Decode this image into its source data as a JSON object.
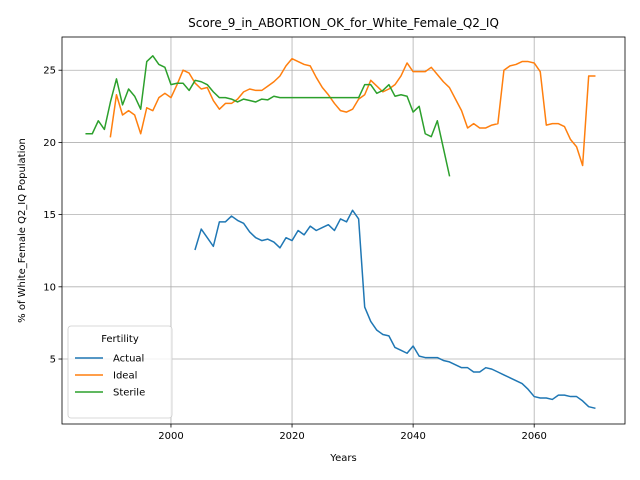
{
  "chart_data": {
    "type": "line",
    "title": "Score_9_in_ABORTION_OK_for_White_Female_Q2_IQ",
    "xlabel": "Years",
    "ylabel": "% of White_Female Q2_IQ Population",
    "xlim": [
      1982,
      2075
    ],
    "ylim": [
      0.5,
      27.3
    ],
    "x_ticks": [
      2000,
      2020,
      2040,
      2060
    ],
    "y_ticks": [
      5,
      10,
      15,
      20,
      25
    ],
    "grid": true,
    "legend": {
      "title": "Fertility",
      "position": "lower-left"
    },
    "series": [
      {
        "name": "Actual",
        "color": "#1f77b4",
        "points": [
          [
            2004,
            12.6
          ],
          [
            2005,
            14.0
          ],
          [
            2006,
            13.4
          ],
          [
            2007,
            12.8
          ],
          [
            2008,
            14.5
          ],
          [
            2009,
            14.5
          ],
          [
            2010,
            14.9
          ],
          [
            2011,
            14.6
          ],
          [
            2012,
            14.4
          ],
          [
            2013,
            13.8
          ],
          [
            2014,
            13.4
          ],
          [
            2015,
            13.2
          ],
          [
            2016,
            13.3
          ],
          [
            2017,
            13.1
          ],
          [
            2018,
            12.7
          ],
          [
            2019,
            13.4
          ],
          [
            2020,
            13.2
          ],
          [
            2021,
            13.9
          ],
          [
            2022,
            13.6
          ],
          [
            2023,
            14.2
          ],
          [
            2024,
            13.9
          ],
          [
            2025,
            14.1
          ],
          [
            2026,
            14.3
          ],
          [
            2027,
            13.9
          ],
          [
            2028,
            14.7
          ],
          [
            2029,
            14.5
          ],
          [
            2030,
            15.3
          ],
          [
            2031,
            14.7
          ],
          [
            2032,
            8.6
          ],
          [
            2033,
            7.6
          ],
          [
            2034,
            7.0
          ],
          [
            2035,
            6.7
          ],
          [
            2036,
            6.6
          ],
          [
            2037,
            5.8
          ],
          [
            2038,
            5.6
          ],
          [
            2039,
            5.4
          ],
          [
            2040,
            5.9
          ],
          [
            2041,
            5.2
          ],
          [
            2042,
            5.1
          ],
          [
            2043,
            5.1
          ],
          [
            2044,
            5.1
          ],
          [
            2045,
            4.9
          ],
          [
            2046,
            4.8
          ],
          [
            2047,
            4.6
          ],
          [
            2048,
            4.4
          ],
          [
            2049,
            4.4
          ],
          [
            2050,
            4.1
          ],
          [
            2051,
            4.1
          ],
          [
            2052,
            4.4
          ],
          [
            2053,
            4.3
          ],
          [
            2054,
            4.1
          ],
          [
            2055,
            3.9
          ],
          [
            2056,
            3.7
          ],
          [
            2057,
            3.5
          ],
          [
            2058,
            3.3
          ],
          [
            2059,
            2.9
          ],
          [
            2060,
            2.4
          ],
          [
            2061,
            2.3
          ],
          [
            2062,
            2.3
          ],
          [
            2063,
            2.2
          ],
          [
            2064,
            2.5
          ],
          [
            2065,
            2.5
          ],
          [
            2066,
            2.4
          ],
          [
            2067,
            2.4
          ],
          [
            2068,
            2.1
          ],
          [
            2069,
            1.7
          ],
          [
            2070,
            1.6
          ]
        ]
      },
      {
        "name": "Ideal",
        "color": "#ff7f0e",
        "points": [
          [
            1990,
            20.4
          ],
          [
            1991,
            23.3
          ],
          [
            1992,
            21.9
          ],
          [
            1993,
            22.2
          ],
          [
            1994,
            21.9
          ],
          [
            1995,
            20.6
          ],
          [
            1996,
            22.4
          ],
          [
            1997,
            22.2
          ],
          [
            1998,
            23.1
          ],
          [
            1999,
            23.4
          ],
          [
            2000,
            23.1
          ],
          [
            2001,
            24.0
          ],
          [
            2002,
            25.0
          ],
          [
            2003,
            24.8
          ],
          [
            2004,
            24.1
          ],
          [
            2005,
            23.7
          ],
          [
            2006,
            23.8
          ],
          [
            2007,
            22.9
          ],
          [
            2008,
            22.3
          ],
          [
            2009,
            22.7
          ],
          [
            2010,
            22.7
          ],
          [
            2011,
            23.0
          ],
          [
            2012,
            23.5
          ],
          [
            2013,
            23.7
          ],
          [
            2014,
            23.6
          ],
          [
            2015,
            23.6
          ],
          [
            2016,
            23.9
          ],
          [
            2017,
            24.2
          ],
          [
            2018,
            24.6
          ],
          [
            2019,
            25.3
          ],
          [
            2020,
            25.8
          ],
          [
            2021,
            25.6
          ],
          [
            2022,
            25.4
          ],
          [
            2023,
            25.3
          ],
          [
            2024,
            24.5
          ],
          [
            2025,
            23.8
          ],
          [
            2026,
            23.3
          ],
          [
            2027,
            22.7
          ],
          [
            2028,
            22.2
          ],
          [
            2029,
            22.1
          ],
          [
            2030,
            22.3
          ],
          [
            2031,
            23.0
          ],
          [
            2032,
            23.3
          ],
          [
            2033,
            24.3
          ],
          [
            2034,
            23.9
          ],
          [
            2035,
            23.5
          ],
          [
            2036,
            23.7
          ],
          [
            2037,
            24.0
          ],
          [
            2038,
            24.6
          ],
          [
            2039,
            25.5
          ],
          [
            2040,
            24.9
          ],
          [
            2041,
            24.9
          ],
          [
            2042,
            24.9
          ],
          [
            2043,
            25.2
          ],
          [
            2044,
            24.7
          ],
          [
            2045,
            24.2
          ],
          [
            2046,
            23.8
          ],
          [
            2047,
            23.0
          ],
          [
            2048,
            22.2
          ],
          [
            2049,
            21.0
          ],
          [
            2050,
            21.3
          ],
          [
            2051,
            21.0
          ],
          [
            2052,
            21.0
          ],
          [
            2053,
            21.2
          ],
          [
            2054,
            21.3
          ],
          [
            2055,
            25.0
          ],
          [
            2056,
            25.3
          ],
          [
            2057,
            25.4
          ],
          [
            2058,
            25.6
          ],
          [
            2059,
            25.6
          ],
          [
            2060,
            25.5
          ],
          [
            2061,
            24.9
          ],
          [
            2062,
            21.2
          ],
          [
            2063,
            21.3
          ],
          [
            2064,
            21.3
          ],
          [
            2065,
            21.1
          ],
          [
            2066,
            20.2
          ],
          [
            2067,
            19.7
          ],
          [
            2068,
            18.4
          ],
          [
            2069,
            24.6
          ],
          [
            2070,
            24.6
          ]
        ]
      },
      {
        "name": "Sterile",
        "color": "#2ca02c",
        "points": [
          [
            1986,
            20.6
          ],
          [
            1987,
            20.6
          ],
          [
            1988,
            21.5
          ],
          [
            1989,
            20.9
          ],
          [
            1990,
            22.8
          ],
          [
            1991,
            24.4
          ],
          [
            1992,
            22.6
          ],
          [
            1993,
            23.7
          ],
          [
            1994,
            23.2
          ],
          [
            1995,
            22.3
          ],
          [
            1996,
            25.6
          ],
          [
            1997,
            26.0
          ],
          [
            1998,
            25.4
          ],
          [
            1999,
            25.2
          ],
          [
            2000,
            24.0
          ],
          [
            2001,
            24.1
          ],
          [
            2002,
            24.1
          ],
          [
            2003,
            23.6
          ],
          [
            2004,
            24.3
          ],
          [
            2005,
            24.2
          ],
          [
            2006,
            24.0
          ],
          [
            2007,
            23.5
          ],
          [
            2008,
            23.1
          ],
          [
            2009,
            23.1
          ],
          [
            2010,
            23.0
          ],
          [
            2011,
            22.8
          ],
          [
            2012,
            23.0
          ],
          [
            2013,
            22.9
          ],
          [
            2014,
            22.8
          ],
          [
            2015,
            23.0
          ],
          [
            2016,
            22.95
          ],
          [
            2017,
            23.2
          ],
          [
            2018,
            23.1
          ],
          [
            2019,
            23.1
          ],
          [
            2020,
            23.1
          ],
          [
            2021,
            23.1
          ],
          [
            2022,
            23.1
          ],
          [
            2023,
            23.1
          ],
          [
            2024,
            23.1
          ],
          [
            2025,
            23.1
          ],
          [
            2026,
            23.1
          ],
          [
            2027,
            23.1
          ],
          [
            2028,
            23.1
          ],
          [
            2029,
            23.1
          ],
          [
            2030,
            23.1
          ],
          [
            2031,
            23.1
          ],
          [
            2032,
            24.0
          ],
          [
            2033,
            24.0
          ],
          [
            2034,
            23.4
          ],
          [
            2035,
            23.6
          ],
          [
            2036,
            24.0
          ],
          [
            2037,
            23.2
          ],
          [
            2038,
            23.3
          ],
          [
            2039,
            23.2
          ],
          [
            2040,
            22.1
          ],
          [
            2041,
            22.5
          ],
          [
            2042,
            20.6
          ],
          [
            2043,
            20.4
          ],
          [
            2044,
            21.5
          ],
          [
            2045,
            19.6
          ],
          [
            2046,
            17.7
          ]
        ]
      }
    ]
  }
}
